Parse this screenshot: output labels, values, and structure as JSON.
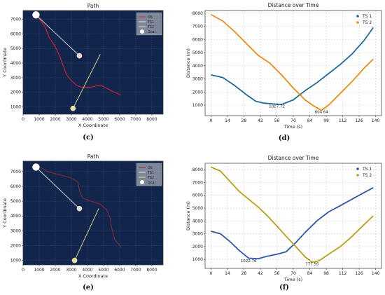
{
  "panels": [
    "(c)",
    "(d)",
    "(e)",
    "(f)"
  ],
  "chart_data": [
    {
      "type": "line",
      "title": "Path",
      "xlabel": "X Coordinate",
      "ylabel": "Y Coordinate",
      "xlim": [
        0,
        8700
      ],
      "ylim": [
        500,
        7600
      ],
      "xticks": [
        0,
        1000,
        2000,
        3000,
        4000,
        5000,
        6000,
        7000,
        8000
      ],
      "yticks": [
        1000,
        2000,
        3000,
        4000,
        5000,
        6000,
        7000
      ],
      "grid": true,
      "legend": "top-right",
      "background": "#11254d",
      "legend_entries": [
        "OS",
        "TS1",
        "TS2",
        "Goal"
      ],
      "series": [
        {
          "name": "OS",
          "color": "#e0202a",
          "x": [
            800,
            1100,
            1400,
            1600,
            1900,
            2100,
            2300,
            2500,
            2700,
            3000,
            3300,
            3600,
            4200,
            4800,
            5500,
            6100
          ],
          "y": [
            7300,
            6900,
            6400,
            5800,
            5300,
            4900,
            4400,
            3800,
            3200,
            2800,
            2500,
            2350,
            2350,
            2500,
            2100,
            1800
          ]
        },
        {
          "name": "TS1",
          "color": "#e8e8e8",
          "x": [
            800,
            3500
          ],
          "y": [
            7300,
            4500
          ]
        },
        {
          "name": "TS2",
          "color": "#e6e08a",
          "x": [
            3100,
            4800
          ],
          "y": [
            900,
            4600
          ]
        }
      ],
      "points": [
        {
          "name": "Goal",
          "x": 800,
          "y": 7300,
          "color": "#ffffff"
        },
        {
          "name": "TS1-pos",
          "x": 3500,
          "y": 4500,
          "color": "#f3d6c9"
        },
        {
          "name": "TS2-pos",
          "x": 3100,
          "y": 900,
          "color": "#eedc98"
        }
      ]
    },
    {
      "type": "line",
      "title": "Distance over Time",
      "xlabel": "Time (s)",
      "ylabel": "Distance (m)",
      "xlim": [
        -5,
        145
      ],
      "ylim": [
        200,
        8200
      ],
      "xticks": [
        0,
        14,
        28,
        42,
        56,
        70,
        84,
        98,
        112,
        126,
        140
      ],
      "yticks": [
        1000,
        2000,
        3000,
        4000,
        5000,
        6000,
        7000,
        8000
      ],
      "grid": true,
      "legend": "top-right",
      "series": [
        {
          "name": "TS 1",
          "color": "#1f6b9a",
          "x": [
            0,
            10,
            20,
            30,
            38,
            45,
            52,
            60,
            70,
            80,
            90,
            100,
            110,
            120,
            130,
            138
          ],
          "y": [
            3300,
            3100,
            2500,
            1800,
            1300,
            1150,
            1100,
            1050,
            1400,
            2100,
            2700,
            3400,
            4100,
            4900,
            5900,
            6900
          ]
        },
        {
          "name": "TS 2",
          "color": "#f08a12",
          "x": [
            0,
            10,
            20,
            30,
            40,
            50,
            60,
            70,
            80,
            88,
            94,
            100,
            110,
            120,
            130,
            138
          ],
          "y": [
            7900,
            7400,
            6600,
            5700,
            4800,
            4200,
            3300,
            2300,
            1400,
            900,
            604,
            1000,
            1900,
            2800,
            3800,
            4500
          ]
        }
      ],
      "annotations": [
        {
          "text": "1017.72",
          "x": 56,
          "y": 1017
        },
        {
          "text": "604.64",
          "x": 94,
          "y": 604
        }
      ]
    },
    {
      "type": "line",
      "title": "Path",
      "xlabel": "X Coordinate",
      "ylabel": "Y Coordinate",
      "xlim": [
        0,
        8700
      ],
      "ylim": [
        700,
        7700
      ],
      "xticks": [
        0,
        1000,
        2000,
        3000,
        4000,
        5000,
        6000,
        7000,
        8000
      ],
      "yticks": [
        1000,
        2000,
        3000,
        4000,
        5000,
        6000,
        7000
      ],
      "grid": true,
      "legend": "top-right",
      "background": "#11254d",
      "legend_entries": [
        "OS",
        "TS1",
        "TS2",
        "Goal"
      ],
      "series": [
        {
          "name": "OS",
          "color": "#8a2a2a",
          "x": [
            900,
            1500,
            2200,
            2900,
            3400,
            3500,
            3700,
            4200,
            4800,
            5200,
            5400,
            5500,
            5700,
            6100
          ],
          "y": [
            7400,
            7000,
            6800,
            6600,
            6300,
            5700,
            5200,
            5000,
            4800,
            4400,
            3900,
            3200,
            2400,
            1900
          ]
        },
        {
          "name": "TS1",
          "color": "#e8e8e8",
          "x": [
            800,
            3500
          ],
          "y": [
            7300,
            4500
          ]
        },
        {
          "name": "TS2",
          "color": "#e6e08a",
          "x": [
            3200,
            4700
          ],
          "y": [
            1000,
            4500
          ]
        }
      ],
      "points": [
        {
          "name": "Goal",
          "x": 800,
          "y": 7300,
          "color": "#ffffff"
        },
        {
          "name": "TS1-pos",
          "x": 3500,
          "y": 4500,
          "color": "#d8dcc8"
        },
        {
          "name": "TS2-pos",
          "x": 3200,
          "y": 1000,
          "color": "#e8e090"
        }
      ]
    },
    {
      "type": "line",
      "title": "Distance over Time",
      "xlabel": "Time (s)",
      "ylabel": "Distance (m)",
      "xlim": [
        -5,
        145
      ],
      "ylim": [
        300,
        8500
      ],
      "xticks": [
        0,
        14,
        28,
        42,
        56,
        70,
        84,
        98,
        112,
        126,
        140
      ],
      "yticks": [
        1000,
        2000,
        3000,
        4000,
        5000,
        6000,
        7000,
        8000
      ],
      "grid": true,
      "legend": "top-right",
      "series": [
        {
          "name": "TS 1",
          "color": "#3056a8",
          "x": [
            0,
            8,
            16,
            24,
            32,
            40,
            48,
            56,
            64,
            72,
            80,
            90,
            100,
            110,
            120,
            130,
            138
          ],
          "y": [
            3200,
            3000,
            2400,
            1700,
            1100,
            1050,
            1250,
            1400,
            1600,
            2300,
            3100,
            4000,
            4700,
            5200,
            5700,
            6200,
            6600
          ]
        },
        {
          "name": "TS 2",
          "color": "#b8a018",
          "x": [
            0,
            8,
            16,
            24,
            32,
            40,
            48,
            56,
            64,
            72,
            80,
            86,
            92,
            100,
            110,
            120,
            130,
            138
          ],
          "y": [
            8200,
            7900,
            7100,
            6300,
            5700,
            5100,
            4400,
            3600,
            2800,
            2000,
            1200,
            777,
            900,
            1400,
            2000,
            2800,
            3700,
            4400
          ]
        }
      ],
      "annotations": [
        {
          "text": "1022.76",
          "x": 32,
          "y": 1022
        },
        {
          "text": "777.95",
          "x": 86,
          "y": 777
        }
      ]
    }
  ]
}
